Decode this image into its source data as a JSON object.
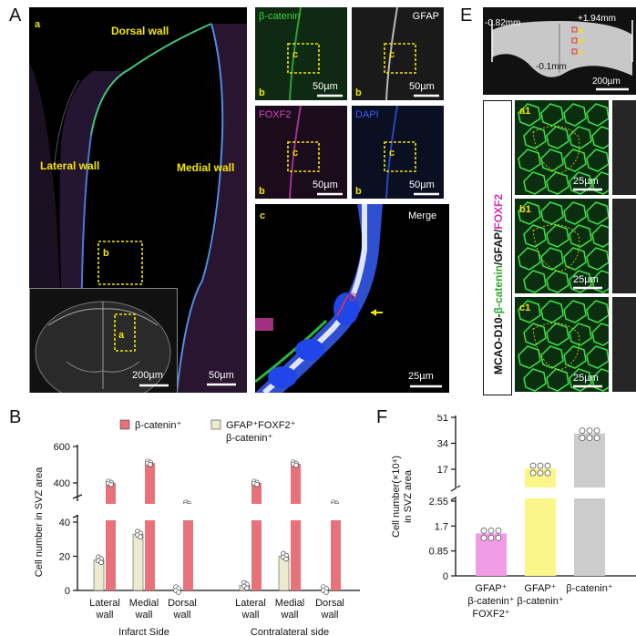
{
  "panel_letters": {
    "A": "A",
    "B": "B",
    "E": "E",
    "F": "F"
  },
  "panel_a": {
    "sub_a": "a",
    "dorsal": "Dorsal wall",
    "lateral": "Lateral wall",
    "medial": "Medial wall",
    "box_b": "b",
    "inset_box": "a",
    "scale_inset": "200µm",
    "scale_main": "50µm"
  },
  "panel_small": [
    {
      "title": "β-catenin",
      "title_color": "#3fd13f",
      "box": "c",
      "corner": "b",
      "scale": "50µm"
    },
    {
      "title": "GFAP",
      "title_color": "#ffffff",
      "box": "c",
      "corner": "b",
      "scale": "50µm"
    },
    {
      "title": "FOXF2",
      "title_color": "#e040c8",
      "box": "c",
      "corner": "b",
      "scale": "50µm"
    },
    {
      "title": "DAPI",
      "title_color": "#3a5cff",
      "box": "c",
      "corner": "b",
      "scale": "50µm"
    }
  ],
  "panel_merge": {
    "corner": "c",
    "title": "Merge",
    "marker": "D",
    "scale": "25µm"
  },
  "panel_e": {
    "label_left": "-0.82mm",
    "label_right": "+1.94mm",
    "label_mid": "-0.1mm",
    "scale": "200µm",
    "marks": [
      "a",
      "b",
      "c"
    ],
    "side_label_1": "MCAO-D10-",
    "side_label_2": "β-catenin",
    "side_label_3": "/GFAP/",
    "side_label_4": "FOXF2",
    "tiles": [
      {
        "id": "a1",
        "scale": "25µm"
      },
      {
        "id": "b1",
        "scale": "25µm"
      },
      {
        "id": "c1",
        "scale": "25µm"
      }
    ]
  },
  "chart_data": [
    {
      "type": "bar",
      "panel": "B",
      "ylabel": "Cell number in SVZ area",
      "yticks_lower": [
        "0",
        "20",
        "40"
      ],
      "yticks_upper": [
        "400",
        "600"
      ],
      "legend": [
        {
          "name": "β-catenin⁺",
          "color": "#e8727a"
        },
        {
          "name": "GFAP⁺FOXF2⁺\nβ-catenin⁺",
          "color": "#ecebd0"
        }
      ],
      "categories": [
        "Lateral\nwall",
        "Medial\nwall",
        "Dorsal\nwall",
        "Lateral\nwall",
        "Medial\nwall",
        "Dorsal\nwall"
      ],
      "groups": [
        "Infarct Side",
        "Contralateral side"
      ],
      "series": [
        {
          "name": "GFAP⁺FOXF2⁺β-catenin⁺",
          "color": "#ecebd0",
          "values": [
            18,
            33,
            0.5,
            3,
            20,
            0.5
          ]
        },
        {
          "name": "β-catenin⁺",
          "color": "#e8727a",
          "values": [
            400,
            510,
            300,
            400,
            505,
            300
          ]
        }
      ]
    },
    {
      "type": "bar",
      "panel": "F",
      "ylabel": "Cell number(×10⁴)\nin SVZ area",
      "yticks_lower": [
        "0",
        "0.85",
        "1.7",
        "2.55"
      ],
      "yticks_upper": [
        "17",
        "34",
        "51"
      ],
      "categories": [
        "GFAP⁺\nβ-catenin⁺\nFOXF2⁺",
        "GFAP⁺\nβ-catenin⁺",
        "β-catenin⁺"
      ],
      "colors": [
        "#f19de6",
        "#faf68a",
        "#cccccc"
      ],
      "values": [
        1.45,
        17.5,
        40.5
      ]
    }
  ]
}
